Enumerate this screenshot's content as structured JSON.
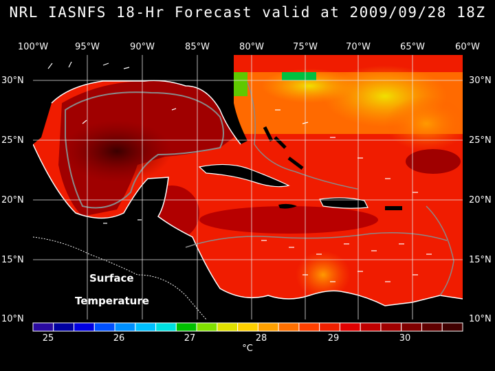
{
  "title": "NRL IASNFS  18-Hr Forecast valid at 2009/09/28 18Z",
  "longitude_labels": [
    "100°W",
    "95°W",
    "90°W",
    "85°W",
    "80°W",
    "75°W",
    "70°W",
    "65°W",
    "60°W"
  ],
  "latitude_labels": [
    "30°N",
    "25°N",
    "20°N",
    "15°N",
    "10°N"
  ],
  "map_label_line1": "Surface",
  "map_label_line2": "Temperature",
  "colorbar": {
    "tick_labels": [
      "25",
      "26",
      "27",
      "28",
      "29",
      "30"
    ],
    "units": "°C",
    "colors": [
      "#2a0aa0",
      "#0000a0",
      "#0000e0",
      "#0050ff",
      "#0090ff",
      "#00c0ff",
      "#00e0e0",
      "#00c000",
      "#80e000",
      "#e0e000",
      "#ffd000",
      "#ffa000",
      "#ff7000",
      "#ff4000",
      "#f02000",
      "#e00000",
      "#c00000",
      "#a00000",
      "#800000",
      "#600000",
      "#400000"
    ]
  }
}
